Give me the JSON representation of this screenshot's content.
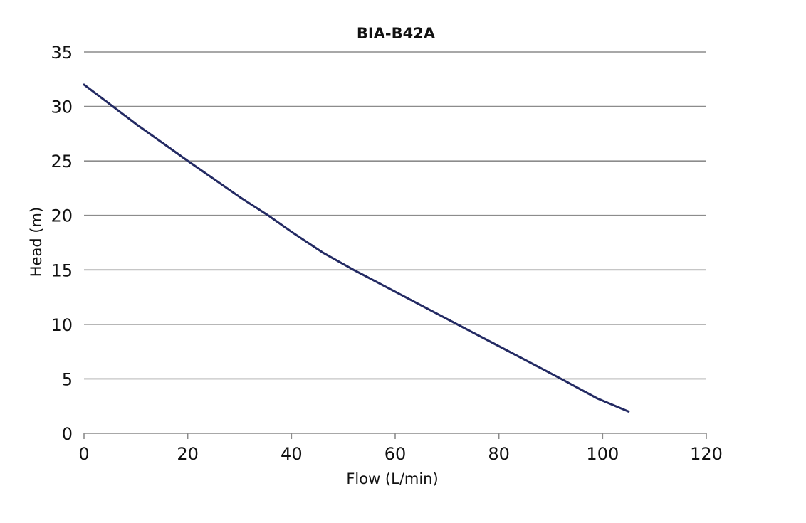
{
  "chart_data": {
    "type": "line",
    "title": "BIA-B42A",
    "xlabel": "Flow (L/min)",
    "ylabel": "Head (m)",
    "xlim": [
      0,
      120
    ],
    "ylim": [
      0,
      35
    ],
    "x_ticks": [
      "0",
      "20",
      "40",
      "60",
      "80",
      "100",
      "120"
    ],
    "y_ticks": [
      "0",
      "5",
      "10",
      "15",
      "20",
      "25",
      "30",
      "35"
    ],
    "grid": "horizontal",
    "series": [
      {
        "color": "#232a63",
        "x": [
          0,
          10,
          20,
          30,
          35.5,
          40,
          46,
          52,
          60,
          72,
          80,
          92,
          99,
          105
        ],
        "y": [
          32,
          28.4,
          25,
          21.7,
          20,
          18.5,
          16.6,
          15,
          13,
          10,
          8,
          5,
          3.2,
          2
        ]
      }
    ]
  }
}
